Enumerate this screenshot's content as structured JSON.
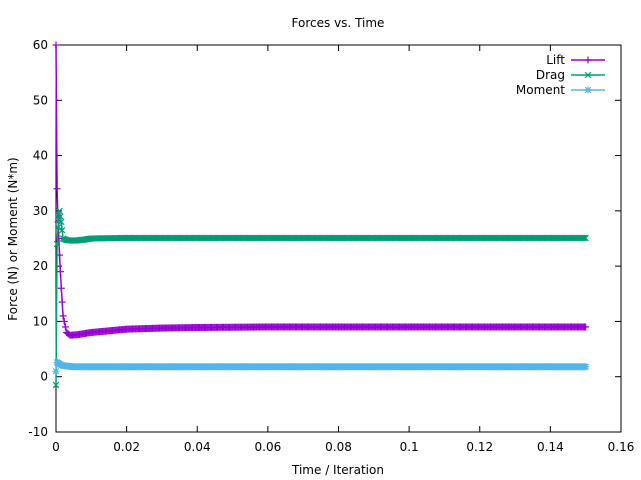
{
  "chart_data": {
    "type": "line",
    "title": "Forces vs. Time",
    "xlabel": "Time / Iteration",
    "ylabel": "Force (N) or Moment (N*m)",
    "xlim": [
      0,
      0.16
    ],
    "ylim": [
      -10,
      60
    ],
    "xticks": [
      0,
      0.02,
      0.04,
      0.06,
      0.08,
      0.1,
      0.12,
      0.14,
      0.16
    ],
    "xtick_labels": [
      "0",
      "0.02",
      "0.04",
      "0.06",
      "0.08",
      "0.1",
      "0.12",
      "0.14",
      "0.16"
    ],
    "yticks": [
      -10,
      0,
      10,
      20,
      30,
      40,
      50,
      60
    ],
    "ytick_labels": [
      "-10",
      "0",
      "10",
      "20",
      "30",
      "40",
      "50",
      "60"
    ],
    "grid": false,
    "legend_position": "top-right",
    "series": [
      {
        "name": "Lift",
        "color": "#9400d3",
        "marker": "plus",
        "points": [
          [
            0,
            60
          ],
          [
            0.0003,
            34
          ],
          [
            0.0006,
            28
          ],
          [
            0.001,
            22
          ],
          [
            0.0015,
            16
          ],
          [
            0.002,
            11
          ],
          [
            0.003,
            8
          ],
          [
            0.004,
            7.5
          ],
          [
            0.006,
            7.6
          ],
          [
            0.01,
            8
          ],
          [
            0.015,
            8.3
          ],
          [
            0.02,
            8.6
          ],
          [
            0.03,
            8.8
          ],
          [
            0.04,
            8.9
          ],
          [
            0.06,
            9
          ],
          [
            0.08,
            9
          ],
          [
            0.1,
            9
          ],
          [
            0.12,
            9
          ],
          [
            0.14,
            9
          ],
          [
            0.15,
            9
          ]
        ]
      },
      {
        "name": "Drag",
        "color": "#009e73",
        "marker": "cross",
        "points": [
          [
            0,
            -1.5
          ],
          [
            0.0003,
            24
          ],
          [
            0.0006,
            27
          ],
          [
            0.001,
            30
          ],
          [
            0.0015,
            28
          ],
          [
            0.002,
            25
          ],
          [
            0.003,
            24.7
          ],
          [
            0.005,
            24.6
          ],
          [
            0.008,
            24.8
          ],
          [
            0.01,
            25
          ],
          [
            0.02,
            25.1
          ],
          [
            0.04,
            25.1
          ],
          [
            0.06,
            25.1
          ],
          [
            0.08,
            25.1
          ],
          [
            0.1,
            25.1
          ],
          [
            0.12,
            25.1
          ],
          [
            0.14,
            25.1
          ],
          [
            0.15,
            25.1
          ]
        ]
      },
      {
        "name": "Moment",
        "color": "#56b4e9",
        "marker": "star",
        "points": [
          [
            0,
            1
          ],
          [
            0.0003,
            2.6
          ],
          [
            0.001,
            2.3
          ],
          [
            0.002,
            2
          ],
          [
            0.005,
            1.8
          ],
          [
            0.01,
            1.8
          ],
          [
            0.02,
            1.8
          ],
          [
            0.04,
            1.8
          ],
          [
            0.06,
            1.8
          ],
          [
            0.08,
            1.8
          ],
          [
            0.1,
            1.8
          ],
          [
            0.12,
            1.8
          ],
          [
            0.14,
            1.8
          ],
          [
            0.15,
            1.8
          ]
        ]
      }
    ]
  }
}
